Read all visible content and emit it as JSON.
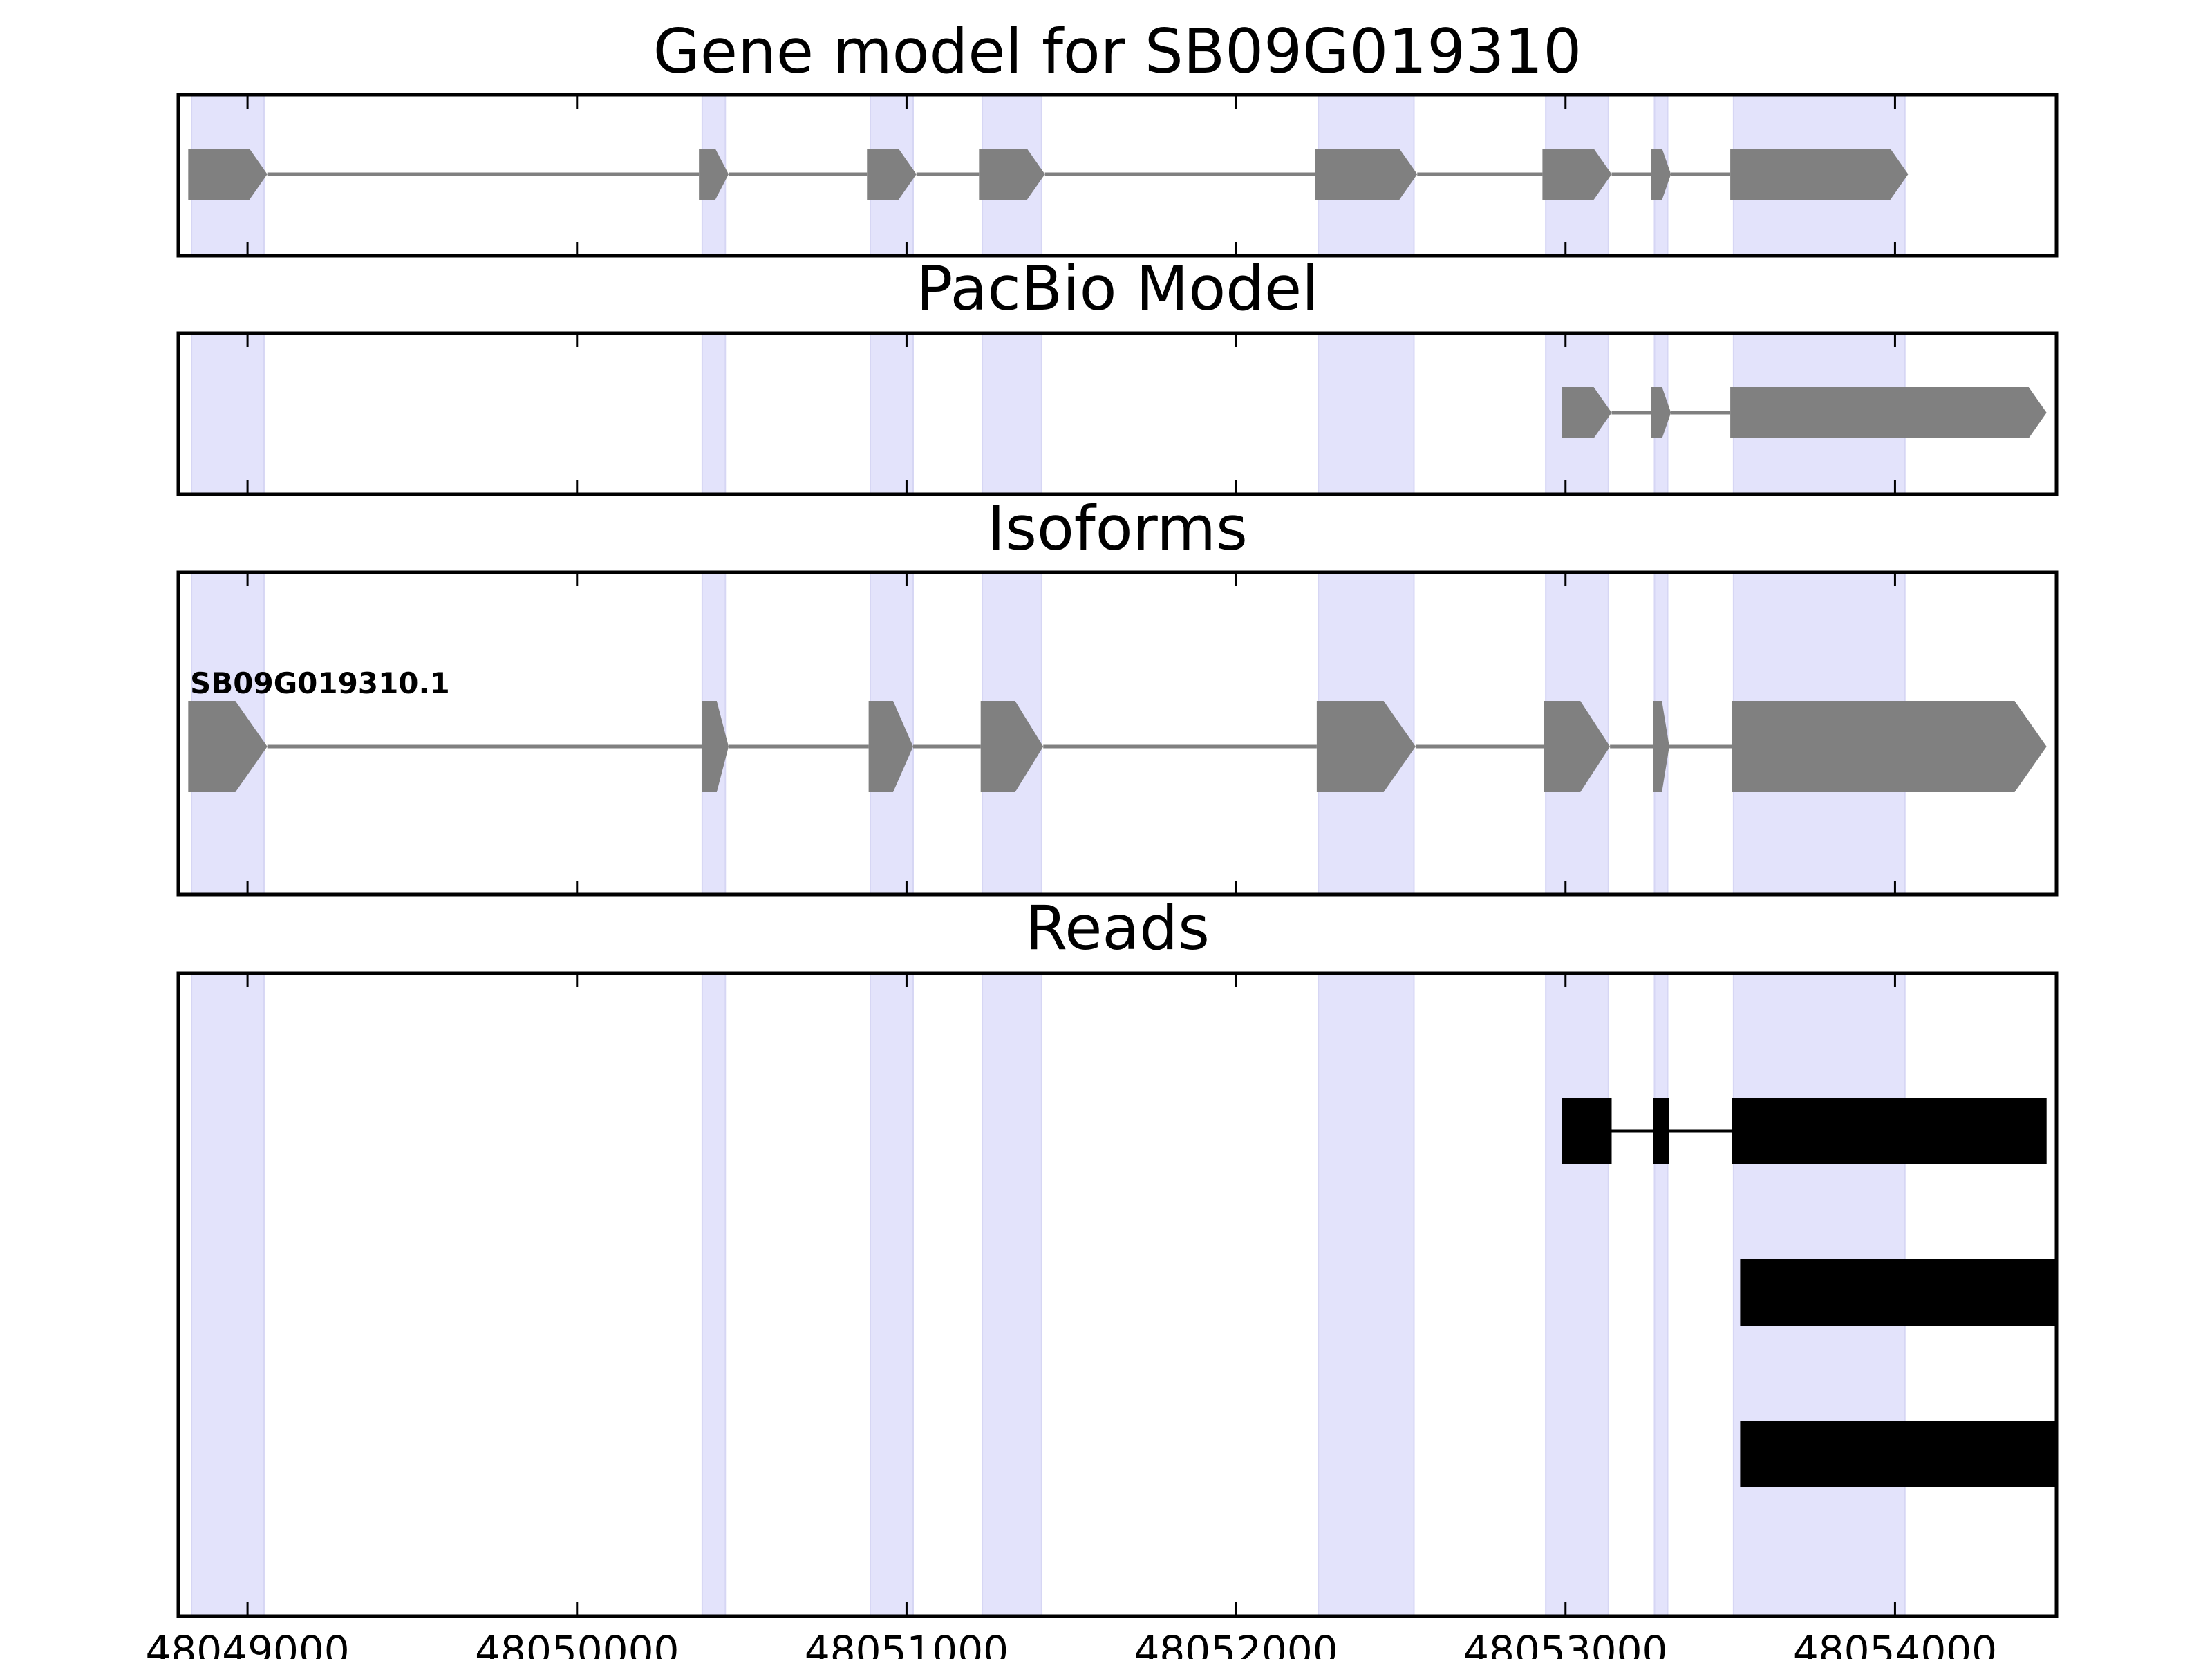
{
  "chart_data": {
    "type": "gene-track",
    "x_range": [
      48048790,
      48054490
    ],
    "x_ticks": [
      48049000,
      48050000,
      48051000,
      48052000,
      48053000,
      48054000
    ],
    "x_tick_labels": [
      "48049000",
      "48050000",
      "48051000",
      "48052000",
      "48053000",
      "48054000"
    ],
    "highlight_color": "#e3e3fb",
    "highlight_regions": [
      [
        48048830,
        48049050
      ],
      [
        48050380,
        48050450
      ],
      [
        48050890,
        48051020
      ],
      [
        48051230,
        48051410
      ],
      [
        48052250,
        48052540
      ],
      [
        48052940,
        48053130
      ],
      [
        48053270,
        48053310
      ],
      [
        48053510,
        48054030
      ]
    ],
    "panels": [
      {
        "title": "Gene model for SB09G019310",
        "kind": "model",
        "color": "#808080",
        "features": [
          {
            "label": "",
            "exons": [
              [
                48048820,
                48049060
              ],
              [
                48050370,
                48050460
              ],
              [
                48050880,
                48051030
              ],
              [
                48051220,
                48051420
              ],
              [
                48052240,
                48052550
              ],
              [
                48052930,
                48053140
              ],
              [
                48053260,
                48053320
              ],
              [
                48053500,
                48054040
              ]
            ]
          }
        ]
      },
      {
        "title": "PacBio Model",
        "kind": "model",
        "color": "#808080",
        "features": [
          {
            "label": "",
            "exons": [
              [
                48052990,
                48053140
              ],
              [
                48053260,
                48053320
              ],
              [
                48053500,
                48054460
              ]
            ]
          }
        ]
      },
      {
        "title": "Isoforms",
        "kind": "model",
        "color": "#808080",
        "features": [
          {
            "label": "SB09G019310.1",
            "exons": [
              [
                48048820,
                48049060
              ],
              [
                48050380,
                48050460
              ],
              [
                48050885,
                48051020
              ],
              [
                48051225,
                48051415
              ],
              [
                48052245,
                48052545
              ],
              [
                48052935,
                48053135
              ],
              [
                48053265,
                48053315
              ],
              [
                48053505,
                48054460
              ]
            ]
          }
        ]
      },
      {
        "title": "Reads",
        "kind": "reads",
        "color": "#000000",
        "features": [
          {
            "label": "",
            "exons": [
              [
                48052990,
                48053140
              ],
              [
                48053265,
                48053315
              ],
              [
                48053505,
                48054460
              ]
            ]
          },
          {
            "label": "",
            "exons": [
              [
                48053530,
                48054490
              ]
            ]
          },
          {
            "label": "",
            "exons": [
              [
                48053530,
                48054490
              ]
            ]
          }
        ]
      }
    ]
  }
}
